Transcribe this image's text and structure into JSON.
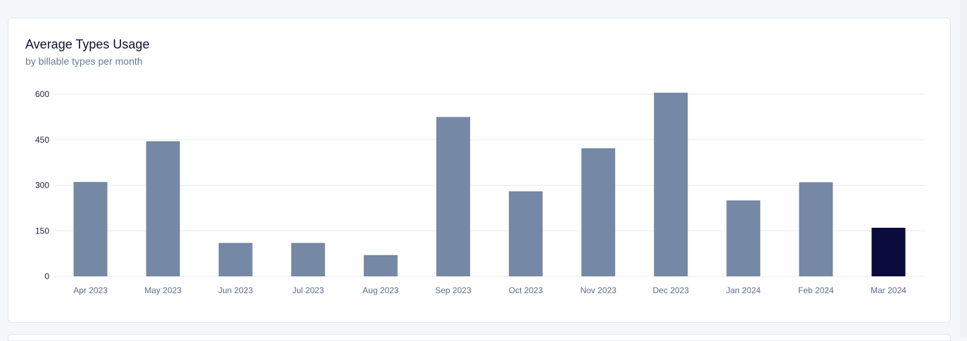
{
  "card": {
    "title": "Average Types Usage",
    "subtitle": "by billable types per month"
  },
  "chart_data": {
    "type": "bar",
    "title": "Average Types Usage",
    "subtitle": "by billable types per month",
    "categories": [
      "Apr 2023",
      "May 2023",
      "Jun 2023",
      "Jul 2023",
      "Aug 2023",
      "Sep 2023",
      "Oct 2023",
      "Nov 2023",
      "Dec 2023",
      "Jan 2024",
      "Feb 2024",
      "Mar 2024"
    ],
    "values": [
      311,
      445,
      110,
      110,
      70,
      525,
      280,
      422,
      605,
      250,
      310,
      160
    ],
    "yticks": [
      0,
      150,
      300,
      450,
      600
    ],
    "ylim": [
      0,
      600
    ],
    "grid": true,
    "legend": "none",
    "xlabel": "",
    "ylabel": "",
    "colors": {
      "bar": "#7588a5",
      "highlight": "#0a0c3d",
      "grid": "#e8eaf0"
    },
    "highlight_index": 11
  }
}
